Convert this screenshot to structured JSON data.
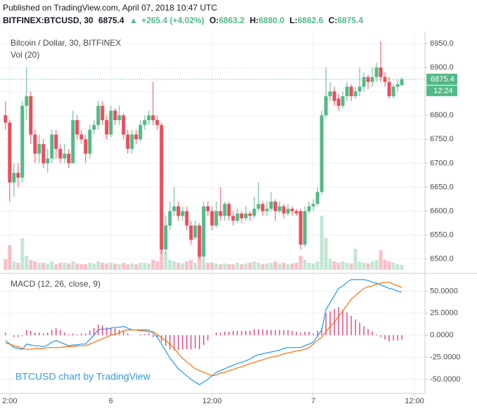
{
  "header": {
    "published": "Published on TradingView.com, April 07, 2018 10:47 UTC",
    "symbol": "BITFINEX:BTCUSD, 30",
    "last": "6875.4",
    "arrow": "▲",
    "change": "+265.4 (+4.02%)",
    "open_label": "O:",
    "open": "6863.2",
    "high_label": "H:",
    "high": "6880.0",
    "low_label": "L:",
    "low": "6862.6",
    "close_label": "C:",
    "close": "6875.4"
  },
  "watermark": "BTCUSD chart by TradingView",
  "chart_data": [
    {
      "type": "candlestick",
      "title": "Bitcoin / Dollar, 30, BITFINEX",
      "up_color": "#53b987",
      "down_color": "#eb4d5c",
      "grid": true,
      "xlim": [
        -1.3,
        99.5
      ],
      "ylim": [
        6476,
        6975
      ],
      "yticks": [
        {
          "value": 6500,
          "label": "6500.0"
        },
        {
          "value": 6550,
          "label": "6550.0"
        },
        {
          "value": 6600,
          "label": "6600.0"
        },
        {
          "value": 6650,
          "label": "6650.0"
        },
        {
          "value": 6700,
          "label": "6700.0"
        },
        {
          "value": 6750,
          "label": "6750.0"
        },
        {
          "value": 6800,
          "label": "6800.0"
        },
        {
          "value": 6850,
          "label": "6850.0"
        },
        {
          "value": 6900,
          "label": "6900.0"
        },
        {
          "value": 6950,
          "label": "6950.0"
        }
      ],
      "last_price_label": "6875.4",
      "countdown": "12:24",
      "open": [
        6800,
        6785,
        6660,
        6680,
        6670,
        6820,
        6840,
        6760,
        6720,
        6740,
        6700,
        6710,
        6760,
        6730,
        6710,
        6720,
        6700,
        6790,
        6760,
        6750,
        6720,
        6770,
        6780,
        6820,
        6790,
        6760,
        6810,
        6790,
        6800,
        6760,
        6730,
        6760,
        6750,
        6780,
        6790,
        6800,
        6790,
        6780,
        6520,
        6570,
        6600,
        6610,
        6590,
        6600,
        6570,
        6545,
        6570,
        6505,
        6610,
        6600,
        6570,
        6600,
        6590,
        6615,
        6590,
        6580,
        6595,
        6585,
        6595,
        6590,
        6605,
        6615,
        6600,
        6605,
        6620,
        6600,
        6610,
        6595,
        6605,
        6600,
        6600,
        6530,
        6600,
        6610,
        6615,
        6640,
        6800,
        6840,
        6850,
        6835,
        6820,
        6840,
        6860,
        6840,
        6850,
        6860,
        6880,
        6870,
        6880,
        6900,
        6880,
        6870,
        6840,
        6860,
        6863.2
      ],
      "high": [
        6830,
        6790,
        6700,
        6700,
        6830,
        6900,
        6850,
        6770,
        6760,
        6750,
        6730,
        6770,
        6770,
        6740,
        6740,
        6730,
        6810,
        6800,
        6770,
        6760,
        6780,
        6790,
        6830,
        6830,
        6800,
        6820,
        6815,
        6820,
        6805,
        6770,
        6770,
        6770,
        6790,
        6800,
        6810,
        6870,
        6800,
        6785,
        6590,
        6620,
        6650,
        6620,
        6610,
        6610,
        6580,
        6580,
        6575,
        6620,
        6620,
        6610,
        6620,
        6650,
        6620,
        6620,
        6600,
        6605,
        6600,
        6610,
        6600,
        6630,
        6660,
        6620,
        6620,
        6640,
        6625,
        6620,
        6615,
        6615,
        6610,
        6605,
        6605,
        6610,
        6620,
        6625,
        6650,
        6810,
        6900,
        6870,
        6860,
        6845,
        6850,
        6870,
        6865,
        6860,
        6900,
        6890,
        6885,
        6900,
        6910,
        6955,
        6890,
        6880,
        6865,
        6875,
        6880.0
      ],
      "low": [
        6770,
        6620,
        6630,
        6650,
        6660,
        6790,
        6740,
        6700,
        6700,
        6690,
        6680,
        6700,
        6710,
        6700,
        6700,
        6690,
        6700,
        6750,
        6740,
        6700,
        6710,
        6760,
        6770,
        6780,
        6750,
        6755,
        6780,
        6780,
        6750,
        6720,
        6720,
        6740,
        6745,
        6770,
        6780,
        6780,
        6770,
        6510,
        6510,
        6560,
        6590,
        6580,
        6580,
        6560,
        6530,
        6540,
        6500,
        6500,
        6590,
        6560,
        6565,
        6580,
        6580,
        6580,
        6570,
        6575,
        6575,
        6580,
        6580,
        6585,
        6600,
        6590,
        6590,
        6600,
        6580,
        6595,
        6585,
        6590,
        6590,
        6590,
        6520,
        6525,
        6595,
        6600,
        6610,
        6635,
        6795,
        6830,
        6820,
        6810,
        6815,
        6830,
        6830,
        6835,
        6840,
        6850,
        6855,
        6860,
        6870,
        6870,
        6860,
        6835,
        6835,
        6850,
        6862.6
      ],
      "close": [
        6785,
        6660,
        6680,
        6670,
        6820,
        6840,
        6760,
        6720,
        6740,
        6700,
        6710,
        6760,
        6730,
        6710,
        6720,
        6700,
        6790,
        6760,
        6750,
        6720,
        6770,
        6780,
        6820,
        6790,
        6760,
        6810,
        6790,
        6800,
        6760,
        6730,
        6760,
        6750,
        6780,
        6790,
        6800,
        6790,
        6780,
        6520,
        6570,
        6600,
        6610,
        6590,
        6600,
        6570,
        6540,
        6570,
        6505,
        6610,
        6600,
        6570,
        6600,
        6590,
        6615,
        6590,
        6580,
        6595,
        6585,
        6595,
        6590,
        6605,
        6615,
        6600,
        6605,
        6620,
        6600,
        6610,
        6595,
        6605,
        6600,
        6595,
        6530,
        6600,
        6610,
        6615,
        6640,
        6800,
        6840,
        6850,
        6830,
        6820,
        6840,
        6860,
        6840,
        6850,
        6860,
        6880,
        6870,
        6880,
        6900,
        6880,
        6870,
        6840,
        6860,
        6865,
        6875.4
      ],
      "volume": {
        "label": "Vol (20)",
        "values": [
          15,
          35,
          12,
          10,
          45,
          20,
          14,
          12,
          10,
          10,
          9,
          12,
          8,
          10,
          10,
          9,
          12,
          9,
          8,
          8,
          10,
          9,
          12,
          10,
          9,
          10,
          9,
          8,
          10,
          8,
          9,
          8,
          10,
          10,
          9,
          14,
          12,
          30,
          25,
          14,
          12,
          10,
          9,
          12,
          14,
          10,
          30,
          15,
          10,
          10,
          9,
          8,
          9,
          8,
          8,
          10,
          8,
          9,
          10,
          12,
          10,
          8,
          9,
          10,
          12,
          9,
          10,
          8,
          9,
          10,
          20,
          14,
          10,
          9,
          12,
          77,
          45,
          15,
          12,
          10,
          12,
          10,
          9,
          30,
          12,
          10,
          9,
          12,
          14,
          28,
          14,
          12,
          10,
          8,
          7
        ]
      }
    },
    {
      "type": "macd",
      "title": "MACD (12, 26, close, 9)",
      "grid": true,
      "xlim": [
        -1.3,
        99.5
      ],
      "ylim": [
        -62,
        67
      ],
      "xticks": [
        {
          "value": 1,
          "label": "2:00"
        },
        {
          "value": 25,
          "label": "6"
        },
        {
          "value": 49,
          "label": "12:00"
        },
        {
          "value": 73,
          "label": "7"
        },
        {
          "value": 97,
          "label": "12:00"
        }
      ],
      "yticks": [
        {
          "value": -50,
          "label": "-50.0000"
        },
        {
          "value": -25,
          "label": "-25.0000"
        },
        {
          "value": 0,
          "label": "0.0000"
        },
        {
          "value": 25,
          "label": "25.0000"
        },
        {
          "value": 50,
          "label": "50.0000"
        }
      ],
      "histogram": {
        "color": "#e0316f",
        "values": [
          3,
          0,
          -2,
          -2,
          -1,
          6,
          5,
          3,
          3,
          2,
          3,
          6,
          8,
          6,
          3,
          1,
          2,
          1,
          2,
          2,
          5,
          8,
          12,
          11,
          9,
          8,
          8,
          6,
          5,
          2,
          0,
          0,
          1,
          1,
          2,
          -2,
          -3,
          -7,
          -12,
          -16,
          -17,
          -17,
          -16,
          -16,
          -16,
          -15,
          -16,
          -11,
          -6,
          0,
          3,
          3,
          4,
          4,
          5,
          5,
          5,
          5,
          5,
          7,
          7,
          7,
          6,
          6,
          6,
          6,
          6,
          6,
          5,
          4,
          3,
          4,
          4,
          2,
          5,
          8,
          25,
          27,
          30,
          32,
          28,
          26,
          22,
          18,
          14,
          10,
          7,
          4,
          1,
          -2,
          -5,
          -7,
          -6,
          -6,
          -5
        ]
      },
      "series": [
        {
          "color": "#2196f3",
          "values": [
            -6,
            -10,
            -14,
            -15,
            -16,
            -10,
            -11,
            -12,
            -12,
            -13,
            -11,
            -8,
            -6,
            -8,
            -10,
            -12,
            -11,
            -11,
            -10,
            -10,
            -5,
            0,
            6,
            7,
            7,
            8,
            9,
            9,
            10,
            8,
            6,
            6,
            6,
            6,
            6,
            2,
            -2,
            -10,
            -18,
            -26,
            -32,
            -38,
            -42,
            -46,
            -50,
            -53,
            -56,
            -53,
            -50,
            -46,
            -42,
            -40,
            -38,
            -36,
            -34,
            -32,
            -31,
            -29,
            -27,
            -24,
            -22,
            -21,
            -20,
            -19,
            -18,
            -17,
            -15,
            -14,
            -14,
            -14,
            -14,
            -12,
            -10,
            -8,
            -1,
            6,
            29,
            37,
            45,
            53,
            56,
            60,
            63,
            63,
            63,
            63,
            62,
            60,
            59,
            57,
            55,
            53,
            52,
            50,
            49
          ]
        },
        {
          "color": "#ff6d00",
          "values": [
            -9,
            -10,
            -12,
            -13,
            -15,
            -16,
            -16,
            -15,
            -15,
            -15,
            -14,
            -14,
            -14,
            -14,
            -13,
            -13,
            -13,
            -12,
            -12,
            -12,
            -10,
            -8,
            -6,
            -4,
            -2,
            0,
            1,
            3,
            5,
            6,
            6,
            6,
            5,
            5,
            4,
            4,
            1,
            -3,
            -6,
            -10,
            -15,
            -21,
            -26,
            -30,
            -34,
            -38,
            -40,
            -42,
            -44,
            -46,
            -45,
            -43,
            -42,
            -40,
            -39,
            -37,
            -36,
            -34,
            -32,
            -31,
            -29,
            -28,
            -26,
            -25,
            -24,
            -23,
            -21,
            -20,
            -19,
            -18,
            -17,
            -16,
            -14,
            -10,
            -6,
            -2,
            4,
            10,
            15,
            21,
            28,
            34,
            41,
            45,
            49,
            53,
            55,
            56,
            58,
            59,
            60,
            60,
            58,
            56,
            54
          ]
        }
      ]
    }
  ]
}
